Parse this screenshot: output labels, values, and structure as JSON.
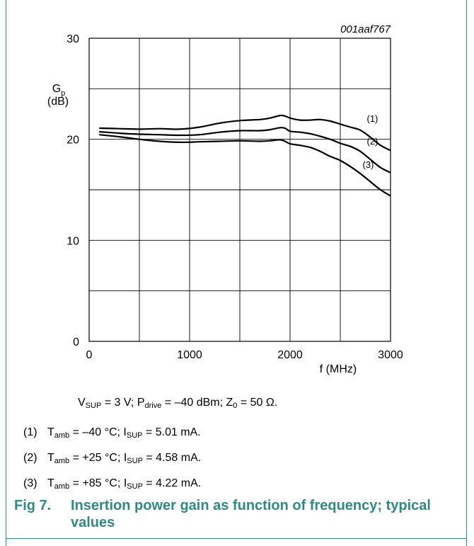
{
  "chart_data": {
    "type": "line",
    "figure_id": "001aaf767",
    "ylabel": {
      "main": "G",
      "sub": "p",
      "unit": "(dB)"
    },
    "xlabel": "f (MHz)",
    "xlim": [
      0,
      3000
    ],
    "ylim": [
      0,
      30
    ],
    "x_ticks": [
      0,
      1000,
      2000,
      3000
    ],
    "y_ticks": [
      0,
      10,
      20,
      30
    ],
    "grid": true,
    "series": [
      {
        "name": "(1)",
        "x": [
          100,
          300,
          500,
          700,
          900,
          1100,
          1300,
          1500,
          1700,
          1800,
          1900,
          1950,
          2000,
          2100,
          2200,
          2300,
          2400,
          2500,
          2600,
          2700,
          2800,
          2900,
          3000
        ],
        "y": [
          21.1,
          21.05,
          21.0,
          21.05,
          21.0,
          21.2,
          21.6,
          21.85,
          21.95,
          22.1,
          22.35,
          22.3,
          22.1,
          21.9,
          21.9,
          21.95,
          21.8,
          21.5,
          21.2,
          20.9,
          20.2,
          19.4,
          18.9
        ]
      },
      {
        "name": "(2)",
        "x": [
          100,
          300,
          500,
          700,
          900,
          1100,
          1300,
          1500,
          1700,
          1800,
          1900,
          1950,
          2000,
          2100,
          2200,
          2300,
          2400,
          2500,
          2600,
          2700,
          2800,
          2900,
          3000
        ],
        "y": [
          20.75,
          20.6,
          20.5,
          20.45,
          20.4,
          20.45,
          20.7,
          20.85,
          20.85,
          20.95,
          21.15,
          21.1,
          20.8,
          20.7,
          20.55,
          20.3,
          20.0,
          19.6,
          19.3,
          18.8,
          18.0,
          17.2,
          16.7
        ]
      },
      {
        "name": "(3)",
        "x": [
          100,
          300,
          500,
          700,
          900,
          1100,
          1300,
          1500,
          1700,
          1800,
          1900,
          1950,
          2000,
          2100,
          2200,
          2300,
          2400,
          2500,
          2600,
          2700,
          2800,
          2900,
          3000
        ],
        "y": [
          20.45,
          20.25,
          20.0,
          19.8,
          19.7,
          19.75,
          19.8,
          19.85,
          19.8,
          19.85,
          19.95,
          19.8,
          19.55,
          19.4,
          19.2,
          18.8,
          18.3,
          17.9,
          17.3,
          16.6,
          15.8,
          15.0,
          14.4
        ]
      }
    ]
  },
  "conditions": {
    "vsup_sym": "V",
    "vsup_sub": "SUP",
    "vsup_rest": " = 3 V; P",
    "pdrive_sub": "drive",
    "pdrive_rest": " = –40 dBm; Z",
    "z0_sub": "0",
    "z0_rest": " = 50 Ω."
  },
  "legend": [
    {
      "num": "(1)",
      "t": "T",
      "t_sub": "amb",
      "t_rest": " = –40 °C; I",
      "i_sub": "SUP",
      "i_rest": " = 5.01 mA."
    },
    {
      "num": "(2)",
      "t": "T",
      "t_sub": "amb",
      "t_rest": " = +25 °C; I",
      "i_sub": "SUP",
      "i_rest": " = 4.58 mA."
    },
    {
      "num": "(3)",
      "t": "T",
      "t_sub": "amb",
      "t_rest": " = +85 °C; I",
      "i_sub": "SUP",
      "i_rest": " = 4.22 mA."
    }
  ],
  "caption": {
    "number": "Fig 7.",
    "text": "Insertion power gain as function of frequency; typical values"
  },
  "colors": {
    "accent": "#2f8a86",
    "line": "#000000"
  }
}
